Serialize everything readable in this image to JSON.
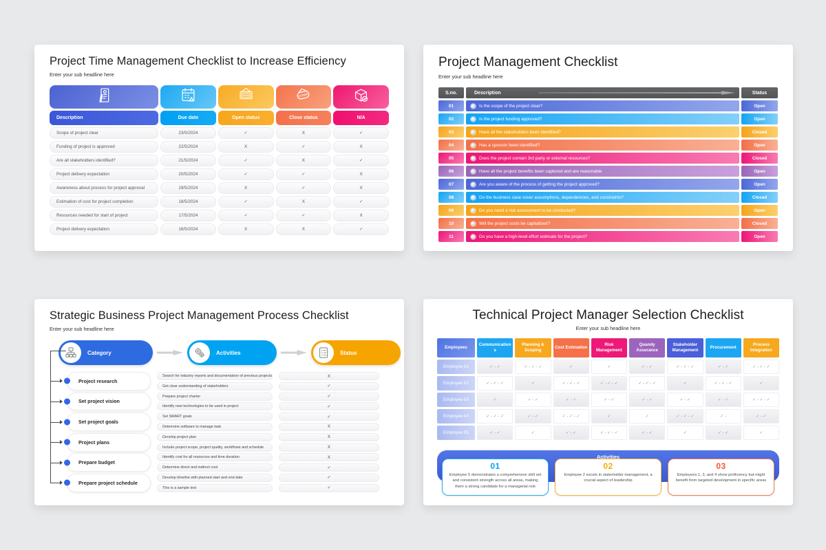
{
  "page": {
    "background": "#e8e9eb"
  },
  "slide1": {
    "title": "Project Time Management Checklist to Increase Efficiency",
    "subtitle": "Enter your sub headline here",
    "columns": [
      {
        "label": "Description",
        "icon": "document-icon",
        "icon_bg": [
          "#4c63d2",
          "#7b8fe4"
        ],
        "header_bg": [
          "#3b57d8",
          "#4c6ae2"
        ]
      },
      {
        "label": "Due date",
        "icon": "calendar-icon",
        "icon_bg": [
          "#1ea9f2",
          "#66c7f7"
        ],
        "header_bg": [
          "#00a0f2",
          "#16abf4"
        ]
      },
      {
        "label": "Open status",
        "icon": "open-sign-icon",
        "icon_bg": [
          "#f8ab25",
          "#fbc95e"
        ],
        "header_bg": [
          "#f8a51d",
          "#f9af2e"
        ]
      },
      {
        "label": "Close status",
        "icon": "closed-sign-icon",
        "icon_bg": [
          "#f4744d",
          "#f8a17d"
        ],
        "header_bg": [
          "#f4704a",
          "#f5825c"
        ]
      },
      {
        "label": "N/A",
        "icon": "package-icon",
        "icon_bg": [
          "#ee1770",
          "#f8609e"
        ],
        "header_bg": [
          "#f00f6e",
          "#f22a80"
        ]
      }
    ],
    "rows": [
      {
        "cells": [
          "Scope of project clear",
          "23/5/2024",
          "✓",
          "X",
          "✓"
        ]
      },
      {
        "cells": [
          "Funding of project is approved",
          "22/5/2024",
          "X",
          "✓",
          "X"
        ]
      },
      {
        "cells": [
          "Are all stakeholders  identified?",
          "21/5/2024",
          "✓",
          "X",
          "✓"
        ]
      },
      {
        "cells": [
          "Project delivery expectation",
          "20/5/2024",
          "✓",
          "✓",
          "X"
        ]
      },
      {
        "cells": [
          "Awareness about process for project approval",
          "19/5/2024",
          "X",
          "✓",
          "X"
        ]
      },
      {
        "cells": [
          "Estimation of cost for project completion",
          "18/5/2024",
          "✓",
          "X",
          "✓"
        ]
      },
      {
        "cells": [
          "Resources  needed  for start of project",
          "17/5/2024",
          "✓",
          "✓",
          "X"
        ]
      },
      {
        "cells": [
          "Project delivery expectation",
          "16/5/2024",
          "X",
          "X",
          "✓"
        ]
      }
    ]
  },
  "slide2": {
    "title": "Project Management Checklist",
    "subtitle": "Enter your sub headline here",
    "header": {
      "sno": "S.no.",
      "description": "Description",
      "status": "Status"
    },
    "palette": {
      "blue": [
        "#4b68d8",
        "#93a6ec"
      ],
      "lightblue": [
        "#14a4f4",
        "#83d0f9"
      ],
      "yellow": [
        "#f5a41b",
        "#fbd06e"
      ],
      "salmon": [
        "#f36f48",
        "#f9b095"
      ],
      "pink": [
        "#ed1677",
        "#f97bb2"
      ],
      "purple": [
        "#9866b6",
        "#c9a0dc"
      ]
    },
    "rows": [
      {
        "num": "01",
        "text": "Is the scope of the project clear?",
        "status": "Open",
        "color": "blue"
      },
      {
        "num": "02",
        "text": "Is the project funding approved?",
        "status": "Open",
        "color": "lightblue"
      },
      {
        "num": "03",
        "text": "Have all the stakeholders been identified?",
        "status": "Closed",
        "color": "yellow"
      },
      {
        "num": "04",
        "text": "Has a sponsor been identified?",
        "status": "Open",
        "color": "salmon"
      },
      {
        "num": "05",
        "text": "Does the project contain 3rd party or external resources?",
        "status": "Closed",
        "color": "pink"
      },
      {
        "num": "06",
        "text": "Have all the project benefits been captured and are reasonable",
        "status": "Open",
        "color": "purple"
      },
      {
        "num": "07",
        "text": "Are you aware of the process of getting the project approved?",
        "status": "Open",
        "color": "blue"
      },
      {
        "num": "08",
        "text": "Do the business case cover assumptions, dependencies,  and constraints?",
        "status": "Closed",
        "color": "lightblue"
      },
      {
        "num": "09",
        "text": "Do you need a risk assessment to be conducted?",
        "status": "Open",
        "color": "yellow"
      },
      {
        "num": "10",
        "text": "Will the project costs be capitalized?",
        "status": "Closed",
        "color": "salmon"
      },
      {
        "num": "11",
        "text": "Do you have a high-level effort estimate for the project?",
        "status": "Open",
        "color": "pink"
      }
    ]
  },
  "slide3": {
    "title": "Strategic Business Project Management Process Checklist",
    "subtitle": "Enter your sub headline here",
    "process_headers": [
      {
        "label": "Category",
        "icon": "org-chart-icon",
        "bg": "#2e6be0"
      },
      {
        "label": "Activities",
        "icon": "gears-icon",
        "bg": "#00a3f2"
      },
      {
        "label": "Status",
        "icon": "checklist-icon",
        "bg": "#f6a400"
      }
    ],
    "groups": [
      {
        "category": "Project research",
        "activities": [
          {
            "text": "Search for industry reports and documentation of previous projects",
            "status": "X"
          },
          {
            "text": "Get clear understanding of stakeholders",
            "status": "✓"
          }
        ]
      },
      {
        "category": "Set project vision",
        "activities": [
          {
            "text": "Prepare project charter",
            "status": "✓"
          },
          {
            "text": "Identify new technologies to be used in project",
            "status": "✓"
          }
        ]
      },
      {
        "category": "Set project goals",
        "activities": [
          {
            "text": "Set SMART goals",
            "status": "✓"
          },
          {
            "text": "Determine software to manage task",
            "status": "X"
          }
        ]
      },
      {
        "category": "Project plans",
        "activities": [
          {
            "text": "Develop project plan",
            "status": "X"
          },
          {
            "text": "Include project scope, project quality, workflows and schedule",
            "status": "X"
          }
        ]
      },
      {
        "category": "Prepare budget",
        "activities": [
          {
            "text": "Identify cost for all resources and time duration",
            "status": "X"
          },
          {
            "text": "Determine direct and indirect cost",
            "status": "✓"
          }
        ]
      },
      {
        "category": "Prepare project schedule",
        "activities": [
          {
            "text": "Develop timeline with planned start and end date",
            "status": "✓"
          },
          {
            "text": "This is a sample text",
            "status": "✓"
          }
        ]
      }
    ]
  },
  "slide4": {
    "title": "Technical Project Manager Selection Checklist",
    "subtitle": "Enter your sub headline here",
    "columns": [
      {
        "label": "Employees",
        "bg": [
          "#4e73e2",
          "#7b95ea"
        ]
      },
      {
        "label": "Communications",
        "bg": "#1ca6f2"
      },
      {
        "label": "Planning & Scoping",
        "bg": "#f6a81e"
      },
      {
        "label": "Cost Estimation",
        "bg": "#f4714a"
      },
      {
        "label": "Risk Management",
        "bg": "#ee1878"
      },
      {
        "label": "Quandy Assurance",
        "bg": "#9c64bc"
      },
      {
        "label": "Stakeholder Management",
        "bg": "#4a5fd8"
      },
      {
        "label": "Procurement",
        "bg": "#1ca6f2"
      },
      {
        "label": "Process Integration",
        "bg": "#f6a81e"
      }
    ],
    "rows": [
      {
        "label": "Employee 01",
        "cells": [
          "✓ - ✓",
          "✓ - ✓ - ✓",
          "✓",
          "✓",
          "✓ - ✓",
          "✓ - ✓ - ✓",
          "✓ - ✓",
          "✓ - ✓ - ✓"
        ]
      },
      {
        "label": "Employee 02",
        "cells": [
          "✓ - ✓ - ✓",
          "✓",
          "✓ - ✓ - ✓",
          "✓ - ✓ - ✓",
          "✓ - ✓ - ✓",
          "✓",
          "✓ - ✓ - ✓",
          "✓"
        ]
      },
      {
        "label": "Employee 03",
        "cells": [
          "✓",
          "✓ - ✓",
          "✓ - ✓",
          "✓ - ✓",
          "✓ - ✓",
          "✓ - ✓",
          "✓ - ✓",
          "✓ - ✓ - ✓"
        ]
      },
      {
        "label": "Employee 04",
        "cells": [
          "✓ - ✓ - ✓",
          "✓ - ✓",
          "✓ - ✓ - ✓",
          "✓",
          "✓",
          "✓ - ✓ - ✓",
          "✓ -",
          "✓ - ✓"
        ]
      },
      {
        "label": "Employee 05",
        "cells": [
          "✓ - ✓",
          "✓",
          "✓ - ✓",
          "✓ - ✓ - ✓",
          "✓ - ✓",
          "✓",
          "✓ - ✓",
          "✓"
        ]
      }
    ],
    "activities_label": "Activities",
    "notes": [
      {
        "num": "01",
        "accent": "#29a9ea",
        "num_color": "#00a3f2",
        "text": "Employee 5 demonstrates a comprehensive  skill set  and consistent strength across all areas, making them a strong  candidate  for a managerial role"
      },
      {
        "num": "02",
        "accent": "#f2b23c",
        "num_color": "#f6a800",
        "text": "Employee 2 excels  in stakeholder management, a crucial aspect of leadership"
      },
      {
        "num": "03",
        "accent": "#f07a50",
        "num_color": "#f4582f",
        "text": "Employees 1, 3, and 4 show proficiency but might benefit from targeted development in specific areas"
      }
    ]
  }
}
